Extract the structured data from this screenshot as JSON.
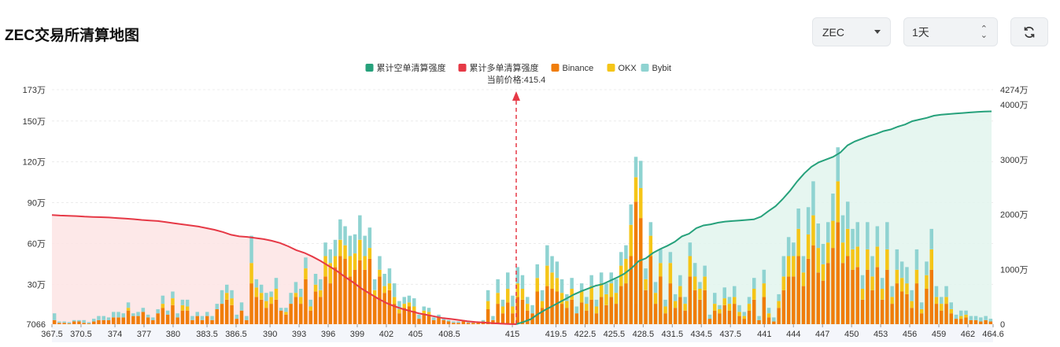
{
  "page": {
    "title": "ZEC交易所清算地图",
    "symbol_select": "ZEC",
    "period_select": "1天",
    "refresh_icon": "refresh-icon"
  },
  "colors": {
    "short_cum": "#26a17b",
    "long_cum": "#e63946",
    "binance": "#f07d0a",
    "okx": "#f5c518",
    "bybit": "#8fd3d1",
    "current_price_line": "#e63946"
  },
  "chart_data": {
    "type": "bar",
    "legend": {
      "placement": "top-center",
      "items": [
        {
          "name": "累计空单清算强度",
          "color": "#26a17b",
          "kind": "line"
        },
        {
          "name": "累计多单清算强度",
          "color": "#e63946",
          "kind": "line"
        },
        {
          "name": "Binance",
          "color": "#f07d0a",
          "kind": "bar"
        },
        {
          "name": "OKX",
          "color": "#f5c518",
          "kind": "bar"
        },
        {
          "name": "Bybit",
          "color": "#8fd3d1",
          "kind": "bar"
        }
      ]
    },
    "current_price_label": "当前价格:415.4",
    "current_price": 415.4,
    "x_range": [
      367.5,
      464.6
    ],
    "x_ticks": [
      367.5,
      370.5,
      374,
      377,
      380,
      383.5,
      386.5,
      390,
      393,
      396,
      399,
      402,
      405,
      408.5,
      415,
      419.5,
      422.5,
      425.5,
      428.5,
      431.5,
      434.5,
      437.5,
      441,
      444,
      447,
      450,
      453,
      456,
      459,
      462,
      464.6
    ],
    "x_tick_labels": [
      "367.5",
      "370.5",
      "374",
      "377",
      "380",
      "383.5",
      "386.5",
      "390",
      "393",
      "396",
      "399",
      "402",
      "405",
      "408.5",
      "415",
      "419.5",
      "422.5",
      "425.5",
      "428.5",
      "431.5",
      "434.5",
      "437.5",
      "441",
      "444",
      "447",
      "450",
      "453",
      "456",
      "459",
      "462",
      "464.6"
    ],
    "y_left": {
      "min": 7066,
      "max": 1730000,
      "ticks": [
        7066,
        300000,
        600000,
        900000,
        1200000,
        1500000,
        1730000
      ],
      "tick_labels": [
        "7066",
        "30万",
        "60万",
        "90万",
        "120万",
        "150万",
        "173万"
      ]
    },
    "y_right": {
      "min": 0,
      "max": 42740000,
      "ticks": [
        0,
        10000000,
        20000000,
        30000000,
        40000000,
        42740000
      ],
      "tick_labels": [
        "0",
        "1000万",
        "2000万",
        "3000万",
        "4000万",
        "4274万"
      ]
    },
    "grid": true,
    "bars_wan": {
      "binance": [
        3,
        1,
        1,
        0.5,
        2,
        2,
        1,
        0.5,
        2,
        3,
        3,
        3,
        5,
        5,
        5,
        10,
        6,
        6,
        9,
        5,
        3,
        8,
        12,
        7,
        14,
        5,
        10,
        10,
        3,
        6,
        3,
        6,
        3,
        11,
        15,
        18,
        14,
        4,
        10,
        3,
        30,
        20,
        18,
        12,
        15,
        18,
        10,
        7,
        15,
        20,
        15,
        33,
        10,
        24,
        20,
        35,
        30,
        42,
        50,
        48,
        35,
        40,
        47,
        40,
        48,
        20,
        35,
        23,
        25,
        15,
        8,
        12,
        13,
        10,
        4,
        8,
        7,
        3,
        5,
        3,
        2,
        1,
        1,
        2,
        1,
        1,
        1,
        2,
        11,
        3,
        15,
        8,
        16,
        8,
        20,
        18,
        10,
        8,
        24,
        12,
        28,
        26,
        24,
        15,
        12,
        18,
        8,
        16,
        10,
        18,
        8,
        20,
        14,
        20,
        15,
        28,
        30,
        50,
        90,
        78,
        25,
        50,
        15,
        35,
        8,
        30,
        12,
        20,
        10,
        35,
        25,
        18,
        25,
        4,
        10,
        8,
        14,
        10,
        15,
        6,
        4,
        10,
        18,
        3,
        20,
        5,
        2,
        12,
        25,
        35,
        35,
        50,
        28,
        48,
        58,
        38,
        32,
        45,
        56,
        75,
        45,
        50,
        40,
        42,
        18,
        40,
        25,
        42,
        18,
        40,
        15,
        30,
        24,
        22,
        12,
        30,
        8,
        26,
        40,
        15,
        10,
        15,
        8,
        4,
        4,
        5,
        3,
        3,
        2,
        3,
        2
      ],
      "okx": [
        0,
        0,
        0,
        0,
        0,
        0,
        0,
        0,
        0,
        0,
        0,
        0,
        0,
        0,
        0,
        2,
        0,
        0,
        0,
        0,
        0,
        0,
        3,
        0,
        5,
        0,
        4,
        3,
        0,
        0,
        0,
        0,
        0,
        0,
        0,
        5,
        5,
        0,
        0,
        0,
        15,
        7,
        5,
        5,
        5,
        8,
        0,
        2,
        0,
        3,
        5,
        8,
        3,
        5,
        5,
        15,
        15,
        8,
        12,
        10,
        15,
        12,
        15,
        10,
        8,
        5,
        5,
        5,
        5,
        5,
        3,
        3,
        3,
        3,
        0,
        2,
        2,
        0,
        0,
        0,
        0,
        0,
        0,
        0,
        0,
        0,
        0,
        0,
        6,
        0,
        8,
        5,
        10,
        5,
        10,
        8,
        5,
        0,
        10,
        5,
        15,
        12,
        10,
        8,
        5,
        8,
        0,
        8,
        5,
        10,
        5,
        10,
        8,
        10,
        8,
        15,
        18,
        23,
        18,
        22,
        8,
        15,
        8,
        10,
        5,
        15,
        5,
        8,
        5,
        15,
        10,
        8,
        10,
        0,
        5,
        3,
        5,
        5,
        5,
        3,
        2,
        5,
        8,
        0,
        10,
        3,
        0,
        5,
        10,
        15,
        15,
        20,
        10,
        18,
        22,
        18,
        12,
        15,
        20,
        30,
        15,
        20,
        15,
        15,
        8,
        15,
        10,
        15,
        8,
        15,
        5,
        10,
        10,
        8,
        5,
        10,
        3,
        10,
        15,
        5,
        5,
        5,
        3,
        0,
        2,
        2,
        0,
        0,
        0,
        0,
        0
      ],
      "bybit": [
        5,
        1,
        1,
        1,
        1,
        1,
        2,
        1,
        2,
        3,
        3,
        2,
        4,
        4,
        3,
        4,
        2,
        3,
        3,
        2,
        2,
        3,
        6,
        3,
        5,
        3,
        4,
        5,
        3,
        3,
        3,
        3,
        3,
        4,
        10,
        6,
        6,
        3,
        6,
        3,
        20,
        6,
        6,
        6,
        4,
        8,
        2,
        3,
        8,
        8,
        6,
        8,
        5,
        8,
        8,
        10,
        10,
        12,
        15,
        14,
        15,
        14,
        18,
        15,
        15,
        8,
        10,
        9,
        11,
        10,
        6,
        5,
        5,
        6,
        3,
        3,
        3,
        2,
        2,
        2,
        1,
        1,
        1,
        1,
        1,
        1,
        1,
        1,
        8,
        3,
        10,
        5,
        12,
        8,
        12,
        10,
        5,
        6,
        10,
        8,
        15,
        12,
        12,
        10,
        5,
        8,
        5,
        6,
        5,
        8,
        5,
        8,
        8,
        8,
        10,
        10,
        10,
        15,
        15,
        20,
        8,
        10,
        8,
        10,
        5,
        8,
        5,
        8,
        5,
        10,
        10,
        5,
        8,
        3,
        8,
        3,
        8,
        5,
        8,
        5,
        3,
        5,
        8,
        3,
        10,
        4,
        3,
        5,
        15,
        14,
        10,
        15,
        12,
        20,
        25,
        18,
        15,
        15,
        20,
        25,
        20,
        20,
        15,
        18,
        10,
        20,
        15,
        15,
        8,
        20,
        8,
        15,
        12,
        12,
        8,
        15,
        5,
        10,
        15,
        8,
        5,
        8,
        5,
        3,
        4,
        3,
        3,
        3,
        3,
        3,
        2
      ]
    },
    "long_cum_wan": [
      1990,
      1980,
      1975,
      1970,
      1960,
      1955,
      1950,
      1945,
      1935,
      1925,
      1915,
      1900,
      1890,
      1880,
      1860,
      1840,
      1820,
      1800,
      1780,
      1750,
      1720,
      1680,
      1630,
      1600,
      1590,
      1570,
      1550,
      1520,
      1480,
      1420,
      1350,
      1300,
      1230,
      1150,
      1060,
      970,
      860,
      760,
      650,
      560,
      470,
      390,
      330,
      280,
      240,
      200,
      170,
      140,
      110,
      95,
      75,
      55,
      40,
      30,
      20,
      12,
      5,
      0
    ],
    "short_cum_wan": [
      0,
      40,
      90,
      180,
      260,
      330,
      400,
      470,
      540,
      600,
      650,
      700,
      730,
      790,
      850,
      920,
      1020,
      1150,
      1200,
      1300,
      1370,
      1430,
      1500,
      1600,
      1650,
      1750,
      1800,
      1820,
      1850,
      1870,
      1880,
      1890,
      1900,
      1910,
      1960,
      2060,
      2150,
      2280,
      2430,
      2600,
      2750,
      2870,
      2950,
      3000,
      3050,
      3130,
      3260,
      3330,
      3380,
      3430,
      3470,
      3520,
      3550,
      3600,
      3640,
      3700,
      3730,
      3760,
      3800,
      3820,
      3830,
      3840,
      3850,
      3860,
      3870,
      3875,
      3880
    ]
  }
}
